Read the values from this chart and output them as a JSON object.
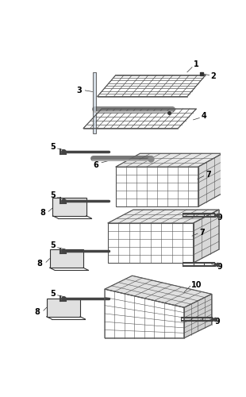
{
  "background": "#ffffff",
  "line_color": "#333333",
  "grid_color": "#555555",
  "basket_color": "#555555",
  "rail_color": "#444444",
  "shelf_color": "#555555"
}
